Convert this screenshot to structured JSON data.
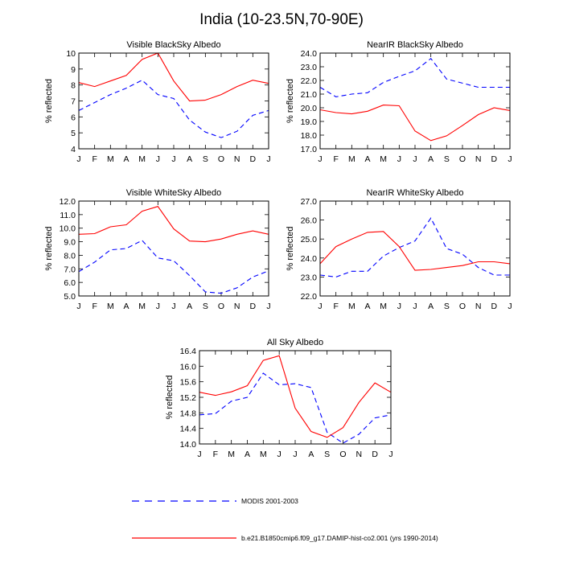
{
  "page": {
    "title": "India (10-23.5N,70-90E)"
  },
  "legend": {
    "placement": "bottom",
    "entries": [
      {
        "label": "MODIS 2001-2003",
        "color": "#0000ff",
        "style": "dashed"
      },
      {
        "label": "b.e21.B1850cmip6.f09_g17.DAMIP-hist-co2.001 (yrs 1990-2014)",
        "color": "#ff0000",
        "style": "solid"
      }
    ]
  },
  "chart_data": [
    {
      "type": "line",
      "title": "Visible BlackSky Albedo",
      "ylabel": "% reflected",
      "categories": [
        "J",
        "F",
        "M",
        "A",
        "M",
        "J",
        "J",
        "A",
        "S",
        "O",
        "N",
        "D",
        "J"
      ],
      "ylim": [
        4,
        10
      ],
      "yticks": [
        "4",
        "5",
        "6",
        "7",
        "8",
        "9",
        "10"
      ],
      "series": [
        {
          "name": "MODIS 2001-2003",
          "color": "#0000ff",
          "dash": true,
          "values": [
            6.4,
            6.9,
            7.4,
            7.8,
            8.3,
            7.4,
            7.15,
            5.8,
            5.05,
            4.7,
            5.1,
            6.1,
            6.4
          ]
        },
        {
          "name": "b.e21.B1850cmip6.f09_g17.DAMIP-hist-co2.001 (yrs 1990-2014)",
          "color": "#ff0000",
          "dash": false,
          "values": [
            8.15,
            7.9,
            8.25,
            8.6,
            9.6,
            10.0,
            8.25,
            7.0,
            7.05,
            7.4,
            7.9,
            8.3,
            8.1
          ]
        }
      ]
    },
    {
      "type": "line",
      "title": "NearIR BlackSky Albedo",
      "ylabel": "% reflected",
      "categories": [
        "J",
        "F",
        "M",
        "A",
        "M",
        "J",
        "J",
        "A",
        "S",
        "O",
        "N",
        "D",
        "J"
      ],
      "ylim": [
        17,
        24
      ],
      "yticks": [
        "17.0",
        "18.0",
        "19.0",
        "20.0",
        "21.0",
        "22.0",
        "23.0",
        "24.0"
      ],
      "series": [
        {
          "name": "MODIS 2001-2003",
          "color": "#0000ff",
          "dash": true,
          "values": [
            21.5,
            20.8,
            21.0,
            21.1,
            21.85,
            22.3,
            22.7,
            23.6,
            22.1,
            21.8,
            21.5,
            21.5,
            21.5
          ]
        },
        {
          "name": "b.e21.B1850cmip6.f09_g17.DAMIP-hist-co2.001 (yrs 1990-2014)",
          "color": "#ff0000",
          "dash": false,
          "values": [
            19.85,
            19.65,
            19.55,
            19.75,
            20.2,
            20.15,
            18.3,
            17.6,
            17.95,
            18.7,
            19.5,
            20.0,
            19.8
          ]
        }
      ]
    },
    {
      "type": "line",
      "title": "Visible WhiteSky Albedo",
      "ylabel": "% reflected",
      "categories": [
        "J",
        "F",
        "M",
        "A",
        "M",
        "J",
        "J",
        "A",
        "S",
        "O",
        "N",
        "D",
        "J"
      ],
      "ylim": [
        5,
        12
      ],
      "yticks": [
        "5.0",
        "6.0",
        "7.0",
        "8.0",
        "9.0",
        "10.0",
        "11.0",
        "12.0"
      ],
      "series": [
        {
          "name": "MODIS 2001-2003",
          "color": "#0000ff",
          "dash": true,
          "values": [
            6.8,
            7.5,
            8.4,
            8.5,
            9.1,
            7.8,
            7.6,
            6.5,
            5.3,
            5.2,
            5.6,
            6.4,
            6.85
          ]
        },
        {
          "name": "b.e21.B1850cmip6.f09_g17.DAMIP-hist-co2.001 (yrs 1990-2014)",
          "color": "#ff0000",
          "dash": false,
          "values": [
            9.55,
            9.6,
            10.1,
            10.25,
            11.25,
            11.6,
            9.95,
            9.05,
            9.0,
            9.2,
            9.55,
            9.8,
            9.55
          ]
        }
      ]
    },
    {
      "type": "line",
      "title": "NearIR WhiteSky Albedo",
      "ylabel": "% reflected",
      "categories": [
        "J",
        "F",
        "M",
        "A",
        "M",
        "J",
        "J",
        "A",
        "S",
        "O",
        "N",
        "D",
        "J"
      ],
      "ylim": [
        22,
        27
      ],
      "yticks": [
        "22.0",
        "23.0",
        "24.0",
        "25.0",
        "26.0",
        "27.0"
      ],
      "series": [
        {
          "name": "MODIS 2001-2003",
          "color": "#0000ff",
          "dash": true,
          "values": [
            23.1,
            23.0,
            23.3,
            23.3,
            24.1,
            24.55,
            24.9,
            26.1,
            24.5,
            24.2,
            23.5,
            23.1,
            23.1
          ]
        },
        {
          "name": "b.e21.B1850cmip6.f09_g17.DAMIP-hist-co2.001 (yrs 1990-2014)",
          "color": "#ff0000",
          "dash": false,
          "values": [
            23.7,
            24.6,
            25.0,
            25.35,
            25.4,
            24.6,
            23.35,
            23.4,
            23.5,
            23.6,
            23.8,
            23.8,
            23.7
          ]
        }
      ]
    },
    {
      "type": "line",
      "title": "All Sky Albedo",
      "ylabel": "% reflected",
      "categories": [
        "J",
        "F",
        "M",
        "A",
        "M",
        "J",
        "J",
        "A",
        "S",
        "O",
        "N",
        "D",
        "J"
      ],
      "ylim": [
        14.0,
        16.4
      ],
      "yticks": [
        "14.0",
        "14.4",
        "14.8",
        "15.2",
        "15.6",
        "16.0",
        "16.4"
      ],
      "series": [
        {
          "name": "MODIS 2001-2003",
          "color": "#0000ff",
          "dash": true,
          "values": [
            14.75,
            14.78,
            15.1,
            15.2,
            15.82,
            15.52,
            15.55,
            15.45,
            14.3,
            14.02,
            14.25,
            14.67,
            14.75
          ]
        },
        {
          "name": "b.e21.B1850cmip6.f09_g17.DAMIP-hist-co2.001 (yrs 1990-2014)",
          "color": "#ff0000",
          "dash": false,
          "values": [
            15.33,
            15.25,
            15.34,
            15.5,
            16.15,
            16.27,
            14.92,
            14.32,
            14.17,
            14.42,
            15.07,
            15.57,
            15.33
          ]
        }
      ]
    }
  ]
}
